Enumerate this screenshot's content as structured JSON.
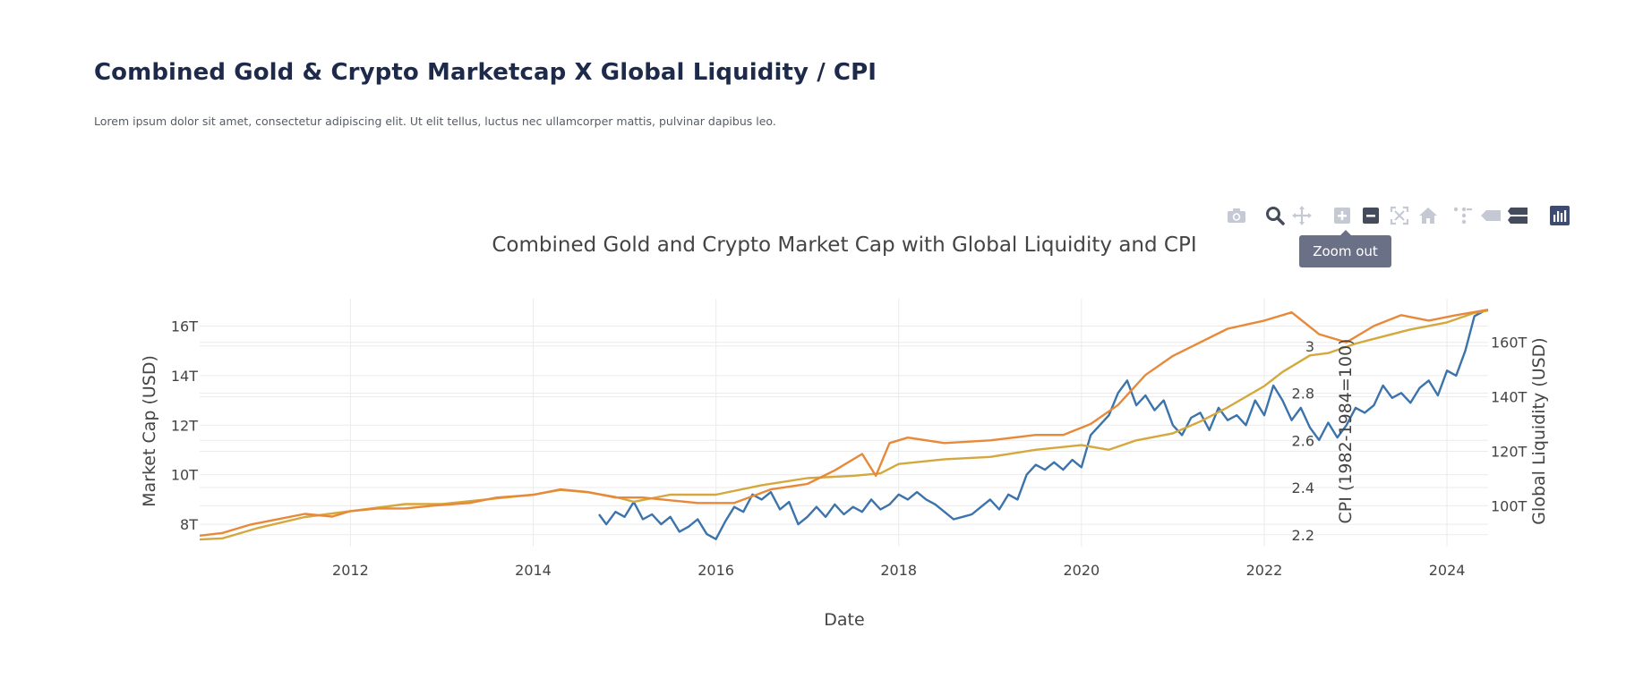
{
  "page": {
    "title": "Combined Gold & Crypto Marketcap X Global Liquidity / CPI",
    "subtitle": "Lorem ipsum dolor sit amet, consectetur adipiscing elit. Ut elit tellus, luctus nec ullamcorper mattis, pulvinar dapibus leo."
  },
  "modebar": {
    "buttons": [
      {
        "icon": "camera-icon",
        "name": "download-plot-button"
      },
      {
        "icon": "magnifier-icon",
        "name": "zoom-button"
      },
      {
        "icon": "pan-icon",
        "name": "pan-button"
      },
      {
        "icon": "zoom-in-icon",
        "name": "zoom-in-button"
      },
      {
        "icon": "zoom-out-icon",
        "name": "zoom-out-button"
      },
      {
        "icon": "autoscale-icon",
        "name": "autoscale-button"
      },
      {
        "icon": "home-icon",
        "name": "reset-axes-button"
      },
      {
        "icon": "spike-lines-icon",
        "name": "spike-lines-button"
      },
      {
        "icon": "hover-closest-icon",
        "name": "hover-closest-button"
      },
      {
        "icon": "hover-compare-icon",
        "name": "hover-compare-button"
      },
      {
        "icon": "plotly-logo-icon",
        "name": "plotly-logo-button"
      }
    ],
    "tooltip": "Zoom out"
  },
  "colors": {
    "market_cap": "#3b73aa",
    "global_liquidity": "#e8893a",
    "cpi": "#d4a83c",
    "grid": "#ebebeb",
    "text": "#444444"
  },
  "chart_data": {
    "type": "line",
    "title": "Combined Gold and Crypto Market Cap with Global Liquidity and CPI",
    "xlabel": "Date",
    "xlim": [
      2010.35,
      2024.45
    ],
    "x_ticks": [
      2012,
      2014,
      2016,
      2018,
      2020,
      2022,
      2024
    ],
    "x_tick_labels": [
      "2012",
      "2014",
      "2016",
      "2018",
      "2020",
      "2022",
      "2024"
    ],
    "grid": true,
    "axes": {
      "y": {
        "label": "Market Cap (USD)",
        "side": "left",
        "range": [
          7.1,
          17.1
        ],
        "ticks": [
          8,
          10,
          12,
          14,
          16
        ],
        "tick_labels": [
          "8T",
          "10T",
          "12T",
          "14T",
          "16T"
        ]
      },
      "y2": {
        "label": "CPI (1982-1984=100)",
        "side": "right",
        "range": [
          2.15,
          3.2
        ],
        "ticks": [
          2.2,
          2.4,
          2.6,
          2.8,
          3
        ],
        "tick_labels": [
          "2.2",
          "2.4",
          "2.6",
          "2.8",
          "3"
        ]
      },
      "y3": {
        "label": "Global Liquidity (USD)",
        "side": "right",
        "range": [
          85,
          176
        ],
        "ticks": [
          100,
          120,
          140,
          160
        ],
        "tick_labels": [
          "100T",
          "120T",
          "140T",
          "160T"
        ]
      }
    },
    "series": [
      {
        "axis": "y",
        "color": "#3b73aa",
        "x": [
          2014.72,
          2014.8,
          2014.9,
          2015.0,
          2015.1,
          2015.2,
          2015.3,
          2015.4,
          2015.5,
          2015.6,
          2015.7,
          2015.8,
          2015.9,
          2016.0,
          2016.1,
          2016.2,
          2016.3,
          2016.4,
          2016.5,
          2016.6,
          2016.7,
          2016.8,
          2016.9,
          2017.0,
          2017.1,
          2017.2,
          2017.3,
          2017.4,
          2017.5,
          2017.6,
          2017.7,
          2017.8,
          2017.9,
          2018.0,
          2018.1,
          2018.2,
          2018.3,
          2018.4,
          2018.5,
          2018.6,
          2018.7,
          2018.8,
          2018.9,
          2019.0,
          2019.1,
          2019.2,
          2019.3,
          2019.4,
          2019.5,
          2019.6,
          2019.7,
          2019.8,
          2019.9,
          2020.0,
          2020.1,
          2020.2,
          2020.3,
          2020.4,
          2020.5,
          2020.6,
          2020.7,
          2020.8,
          2020.9,
          2021.0,
          2021.1,
          2021.2,
          2021.3,
          2021.4,
          2021.5,
          2021.6,
          2021.7,
          2021.8,
          2021.9,
          2022.0,
          2022.1,
          2022.2,
          2022.3,
          2022.4,
          2022.5,
          2022.6,
          2022.7,
          2022.8,
          2022.9,
          2023.0,
          2023.1,
          2023.2,
          2023.3,
          2023.4,
          2023.5,
          2023.6,
          2023.7,
          2023.8,
          2023.9,
          2024.0,
          2024.1,
          2024.2,
          2024.3,
          2024.4
        ],
        "values": [
          8.4,
          8.0,
          8.5,
          8.3,
          8.9,
          8.2,
          8.4,
          8.0,
          8.3,
          7.7,
          7.9,
          8.2,
          7.6,
          7.4,
          8.1,
          8.7,
          8.5,
          9.2,
          9.0,
          9.3,
          8.6,
          8.9,
          8.0,
          8.3,
          8.7,
          8.3,
          8.8,
          8.4,
          8.7,
          8.5,
          9.0,
          8.6,
          8.8,
          9.2,
          9.0,
          9.3,
          9.0,
          8.8,
          8.5,
          8.2,
          8.3,
          8.4,
          8.7,
          9.0,
          8.6,
          9.2,
          9.0,
          10.0,
          10.4,
          10.2,
          10.5,
          10.2,
          10.6,
          10.3,
          11.6,
          12.0,
          12.4,
          13.3,
          13.8,
          12.8,
          13.2,
          12.6,
          13.0,
          12.0,
          11.6,
          12.3,
          12.5,
          11.8,
          12.7,
          12.2,
          12.4,
          12.0,
          13.0,
          12.4,
          13.6,
          13.0,
          12.2,
          12.7,
          11.9,
          11.4,
          12.1,
          11.5,
          12.0,
          12.7,
          12.5,
          12.8,
          13.6,
          13.1,
          13.3,
          12.9,
          13.5,
          13.8,
          13.2,
          14.2,
          14.0,
          15.0,
          16.4,
          16.6
        ]
      },
      {
        "axis": "y2",
        "color": "#d4a83c",
        "x": [
          2010.35,
          2010.6,
          2011.0,
          2011.5,
          2012.0,
          2012.3,
          2012.6,
          2013.0,
          2013.5,
          2014.0,
          2014.3,
          2014.6,
          2014.9,
          2015.1,
          2015.5,
          2016.0,
          2016.5,
          2017.0,
          2017.5,
          2017.8,
          2018.0,
          2018.5,
          2019.0,
          2019.5,
          2020.0,
          2020.3,
          2020.6,
          2021.0,
          2021.3,
          2021.6,
          2022.0,
          2022.2,
          2022.5,
          2022.7,
          2023.0,
          2023.3,
          2023.6,
          2024.0,
          2024.3,
          2024.45
        ],
        "values": [
          2.18,
          2.185,
          2.23,
          2.275,
          2.3,
          2.315,
          2.33,
          2.33,
          2.35,
          2.37,
          2.39,
          2.38,
          2.36,
          2.34,
          2.37,
          2.37,
          2.41,
          2.44,
          2.45,
          2.46,
          2.5,
          2.52,
          2.53,
          2.56,
          2.58,
          2.56,
          2.6,
          2.63,
          2.68,
          2.74,
          2.83,
          2.89,
          2.96,
          2.97,
          3.01,
          3.04,
          3.07,
          3.1,
          3.14,
          3.15
        ]
      },
      {
        "axis": "y3",
        "color": "#e8893a",
        "x": [
          2010.35,
          2010.6,
          2010.9,
          2011.2,
          2011.5,
          2011.8,
          2012.0,
          2012.3,
          2012.6,
          2012.9,
          2013.3,
          2013.6,
          2014.0,
          2014.3,
          2014.6,
          2014.9,
          2015.2,
          2015.5,
          2015.8,
          2016.2,
          2016.6,
          2017.0,
          2017.3,
          2017.6,
          2017.75,
          2017.9,
          2018.1,
          2018.5,
          2019.0,
          2019.5,
          2019.8,
          2020.1,
          2020.4,
          2020.7,
          2021.0,
          2021.3,
          2021.6,
          2022.0,
          2022.3,
          2022.6,
          2022.9,
          2023.2,
          2023.5,
          2023.8,
          2024.1,
          2024.45
        ],
        "values": [
          89,
          90,
          93,
          95,
          97,
          96,
          98,
          99,
          99,
          100,
          101,
          103,
          104,
          106,
          105,
          103,
          103,
          102,
          101,
          101,
          106,
          108,
          113,
          119,
          111,
          123,
          125,
          123,
          124,
          126,
          126,
          130,
          137,
          148,
          155,
          160,
          165,
          168,
          171,
          163,
          160,
          166,
          170,
          168,
          170,
          172
        ]
      }
    ]
  }
}
